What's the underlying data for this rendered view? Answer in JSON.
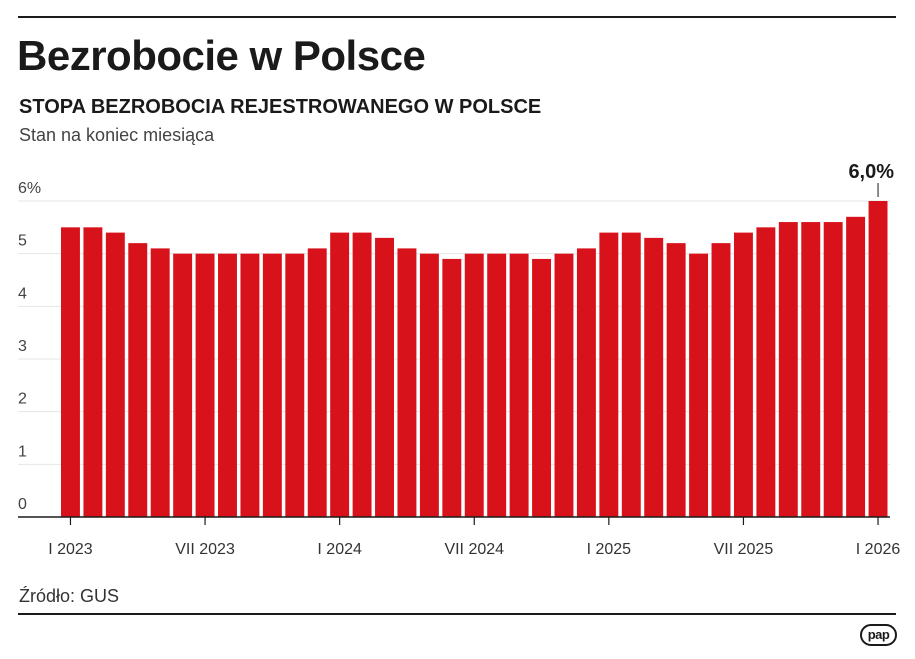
{
  "header": {
    "title": "Bezrobocie w Polsce",
    "subtitle": "STOPA BEZROBOCIA REJESTROWANEGO W POLSCE",
    "note": "Stan na koniec miesiąca"
  },
  "footer": {
    "source": "Źródło: GUS",
    "logo": "pap"
  },
  "colors": {
    "bar": "#d7121b",
    "text": "#1a1a1a",
    "grid": "#e6e6e6"
  },
  "chart_data": {
    "type": "bar",
    "title": "STOPA BEZROBOCIA REJESTROWANEGO W POLSCE",
    "ylabel": "",
    "xlabel": "",
    "ylim": [
      0,
      6
    ],
    "y_ticks": [
      "0",
      "1",
      "2",
      "3",
      "4",
      "5",
      "6%"
    ],
    "grid": true,
    "x_tick_labels": [
      {
        "index": 0,
        "label": "I 2023"
      },
      {
        "index": 6,
        "label": "VII 2023"
      },
      {
        "index": 12,
        "label": "I 2024"
      },
      {
        "index": 18,
        "label": "VII 2024"
      },
      {
        "index": 24,
        "label": "I 2025"
      },
      {
        "index": 30,
        "label": "VII 2025"
      },
      {
        "index": 36,
        "label": "I 2026"
      }
    ],
    "values": [
      5.5,
      5.5,
      5.4,
      5.2,
      5.1,
      5.0,
      5.0,
      5.0,
      5.0,
      5.0,
      5.0,
      5.1,
      5.4,
      5.4,
      5.3,
      5.1,
      5.0,
      4.9,
      5.0,
      5.0,
      5.0,
      4.9,
      5.0,
      5.1,
      5.4,
      5.4,
      5.3,
      5.2,
      5.0,
      5.2,
      5.4,
      5.5,
      5.6,
      5.6,
      5.6,
      5.7,
      6.0
    ],
    "annotation": {
      "index": 36,
      "text": "6,0%"
    }
  }
}
